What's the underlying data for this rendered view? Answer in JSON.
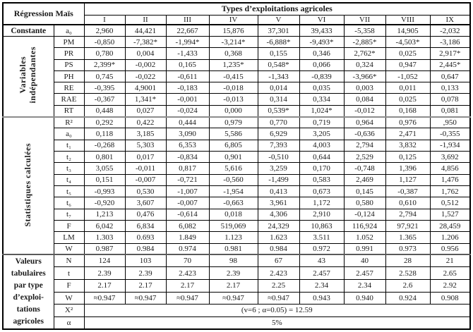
{
  "table": {
    "corner_title": "Régression Maïs",
    "header_group": "Types d’exploitations agricoles",
    "columns": [
      "I",
      "II",
      "III",
      "IV",
      "V",
      "VI",
      "VII",
      "VIII",
      "IX"
    ],
    "sections": [
      {
        "group": "Constante",
        "rows": [
          {
            "label": "a₀",
            "values": [
              "2,960",
              "44,421",
              "22,667",
              "15,876",
              "37,301",
              "39,433",
              "-5,358",
              "14,905",
              "-2,032"
            ]
          }
        ]
      },
      {
        "group": "Variables\nindépendantes",
        "rows": [
          {
            "label": "PM",
            "values": [
              "-0,850",
              "-7,382*",
              "-1,994*",
              "-3,214*",
              "-6,888*",
              "-9,493*",
              "-2,885*",
              "-4,503*",
              "-3,186"
            ]
          },
          {
            "label": "PR",
            "values": [
              "0,780",
              "0,004",
              "-1,433",
              "0,368",
              "0,155",
              "0,346",
              "2,762*",
              "0,025",
              "2,917*"
            ]
          },
          {
            "label": "PS",
            "values": [
              "2,399*",
              "-0,002",
              "0,165",
              "1,235*",
              "0,548*",
              "0,066",
              "0,324",
              "0,947",
              "2,445*"
            ]
          },
          {
            "label": "PH",
            "values": [
              "0,745",
              "-0,022",
              "-0,611",
              "-0,415",
              "-1,343",
              "-0,839",
              "-3,966*",
              "-1,052",
              "0,647"
            ]
          },
          {
            "label": "RE",
            "values": [
              "-0,395",
              "4,9001",
              "-0,183",
              "-0,018",
              "0,014",
              "0,035",
              "0,003",
              "0,011",
              "0,133"
            ]
          },
          {
            "label": "RAE",
            "values": [
              "-0,367",
              "1,341*",
              "-0,001",
              "-0,013",
              "0,314",
              "0,334",
              "0,084",
              "0,025",
              "0,078"
            ]
          },
          {
            "label": "RT",
            "values": [
              "0,448",
              "0,027",
              "-0,024",
              "0,000",
              "0,539*",
              "1,024*",
              "-0,012",
              "0,168",
              "0,081"
            ]
          }
        ]
      },
      {
        "group": "Statistiques calculées",
        "rows": [
          {
            "label": "R²",
            "values": [
              "0,292",
              "0,422",
              "0,444",
              "0,979",
              "0,770",
              "0,719",
              "0,964",
              "0,976",
              ",950"
            ]
          },
          {
            "label": "a₀",
            "values": [
              "0,118",
              "3,185",
              "3,090",
              "5,586",
              "6,929",
              "3,205",
              "-0,636",
              "2,471",
              "-0,355"
            ]
          },
          {
            "label": "t₁",
            "values": [
              "-0,268",
              "5,303",
              "6,353",
              "6,805",
              "7,393",
              "4,003",
              "2,794",
              "3,832",
              "-1,934"
            ]
          },
          {
            "label": "t₂",
            "values": [
              "0,801",
              "0,017",
              "-0,834",
              "0,901",
              "-0,510",
              "0,644",
              "2,529",
              "0,125",
              "3,692"
            ]
          },
          {
            "label": "t₃",
            "values": [
              "3,055",
              "-0,011",
              "0,817",
              "5,616",
              "3,259",
              "0,170",
              "-0,748",
              "1,396",
              "4,856"
            ]
          },
          {
            "label": "t₄",
            "values": [
              "0,151",
              "-0,007",
              "-0,721",
              "-0,560",
              "-1,499",
              "0,583",
              "2,469",
              "1,127",
              "1,476"
            ]
          },
          {
            "label": "t₅",
            "values": [
              "-0,993",
              "0,530",
              "-1,007",
              "-1,954",
              "0,413",
              "0,673",
              "0,145",
              "-0,387",
              "1,762"
            ]
          },
          {
            "label": "t₆",
            "values": [
              "-0,920",
              "3,607",
              "-0,007",
              "-0,663",
              "3,961",
              "1,172",
              "0,580",
              "0,610",
              "0,512"
            ]
          },
          {
            "label": "t₇",
            "values": [
              "1,213",
              "0,476",
              "-0,614",
              "0,018",
              "4,306",
              "2,910",
              "-0,124",
              "2,794",
              "1,527"
            ]
          },
          {
            "label": "F",
            "values": [
              "6,042",
              "6,834",
              "6,082",
              "519,069",
              "24,329",
              "10,863",
              "116,924",
              "97,921",
              "28,459"
            ]
          },
          {
            "label": "LM",
            "values": [
              "1.303",
              "0.693",
              "1.849",
              "1.123",
              "1.623",
              "3.511",
              "1.052",
              "1.365",
              "1.206"
            ]
          },
          {
            "label": "W",
            "values": [
              "0.987",
              "0.984",
              "0.974",
              "0.981",
              "0.984",
              "0.972",
              "0.991",
              "0.973",
              "0.956"
            ]
          }
        ]
      },
      {
        "group": "Valeurs tabulaires par type d'exploitations agricoles",
        "group_lines": [
          "Valeurs",
          "tabulaires",
          "par type",
          "d’exploi-",
          "tations",
          "agricoles"
        ],
        "rows": [
          {
            "label": "N",
            "values": [
              "124",
              "103",
              "70",
              "98",
              "67",
              "43",
              "40",
              "28",
              "21"
            ]
          },
          {
            "label": "t",
            "values": [
              "2.39",
              "2.39",
              "2.423",
              "2.39",
              "2.423",
              "2.457",
              "2.457",
              "2.528",
              "2.65"
            ]
          },
          {
            "label": "F",
            "values": [
              "2.17",
              "2.17",
              "2.17",
              "2.17",
              "2.25",
              "2.34",
              "2.34",
              "2.6",
              "2.92"
            ]
          },
          {
            "label": "W",
            "values": [
              "≈0.947",
              "≈0.947",
              "≈0.947",
              "≈0.947",
              "≈0.947",
              "0.943",
              "0.940",
              "0.924",
              "0.908"
            ]
          },
          {
            "label": "X²",
            "span": "(v=6 ; α=0.05) = 12.59"
          },
          {
            "label": "α",
            "span": "5%"
          }
        ]
      }
    ]
  }
}
